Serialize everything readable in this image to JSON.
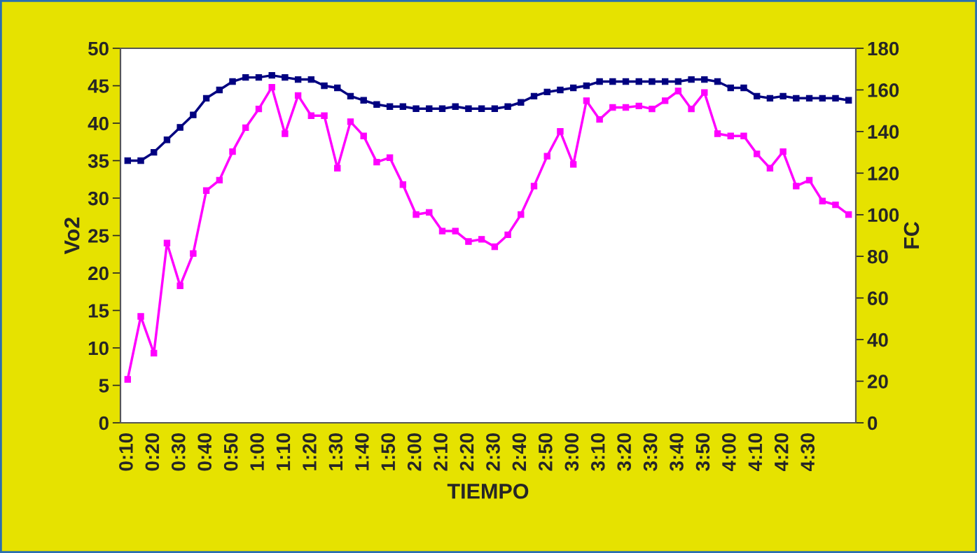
{
  "chart_data": {
    "type": "line",
    "xlabel": "TIEMPO",
    "ylabel": "Vo2",
    "y2label": "FC",
    "categories": [
      "0:10",
      null,
      "0:20",
      null,
      "0:30",
      null,
      "0:40",
      null,
      "0:50",
      null,
      "1:00",
      null,
      "1:10",
      null,
      "1:20",
      null,
      "1:30",
      null,
      "1:40",
      null,
      "1:50",
      null,
      "2:00",
      null,
      "2:10",
      null,
      "2:20",
      null,
      "2:30",
      null,
      "2:40",
      null,
      "2:50",
      null,
      "3:00",
      null,
      "3:10",
      null,
      "3:20",
      null,
      "3:30",
      null,
      "3:40",
      null,
      "3:50",
      null,
      "4:00",
      null,
      "4:10",
      null,
      "4:20",
      null,
      "4:30",
      null,
      null,
      null
    ],
    "series": [
      {
        "color": "#ff00ff",
        "values": [
          5.8,
          14.2,
          9.3,
          24.0,
          18.3,
          22.6,
          31.0,
          32.4,
          36.2,
          39.4,
          41.9,
          44.8,
          38.6,
          43.7,
          41.0,
          41.0,
          34.0,
          40.2,
          38.3,
          34.8,
          35.4,
          31.8,
          27.8,
          28.1,
          25.6,
          25.6,
          24.2,
          24.5,
          23.5,
          25.1,
          27.8,
          31.6,
          35.6,
          38.9,
          34.5,
          43.0,
          40.5,
          42.1,
          42.1,
          42.3,
          41.9,
          43.0,
          44.3,
          41.9,
          44.1,
          38.6,
          38.3,
          38.3,
          35.9,
          34.0,
          36.2,
          31.6,
          32.4,
          29.6,
          29.1,
          27.8
        ]
      },
      {
        "color": "#000080",
        "axis": "y2",
        "values": [
          126,
          126,
          130,
          136,
          142,
          148,
          156,
          160,
          164,
          166,
          166,
          167,
          166,
          165,
          165,
          162,
          161,
          157,
          155,
          153,
          152,
          152,
          151,
          151,
          151,
          152,
          151,
          151,
          151,
          152,
          154,
          157,
          159,
          160,
          161,
          162,
          164,
          164,
          164,
          164,
          164,
          164,
          164,
          165,
          165,
          164,
          161,
          161,
          157,
          156,
          157,
          156,
          156,
          156,
          156,
          155
        ]
      }
    ],
    "ylim": [
      0,
      50
    ],
    "yticks": [
      0,
      5,
      10,
      15,
      20,
      25,
      30,
      35,
      40,
      45,
      50
    ],
    "y2lim": [
      0,
      180
    ],
    "y2ticks": [
      0,
      20,
      40,
      60,
      80,
      100,
      120,
      140,
      160,
      180
    ],
    "marker": "square",
    "line_style": "solid",
    "grid": false,
    "legend": false
  }
}
